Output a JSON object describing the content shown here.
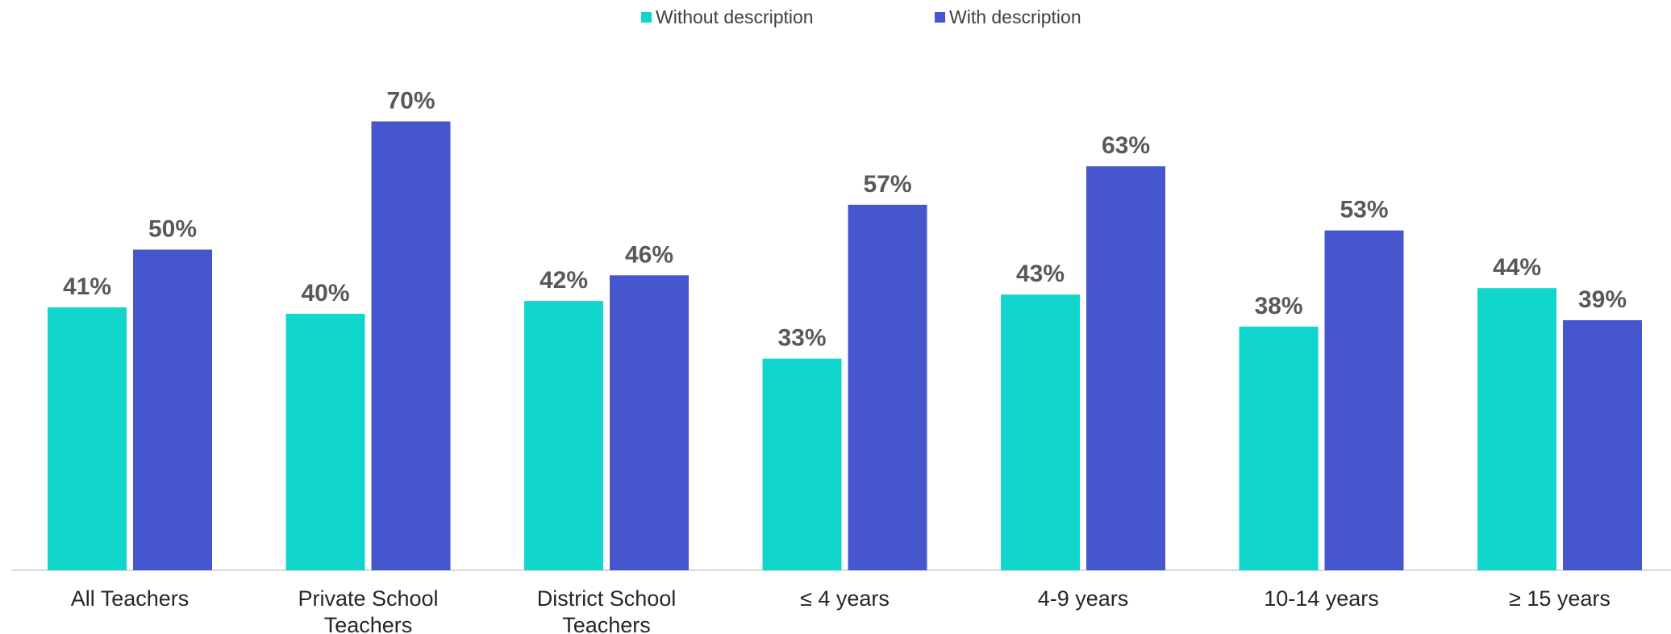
{
  "chart_data": {
    "type": "bar",
    "categories": [
      [
        "All Teachers"
      ],
      [
        "Private School",
        "Teachers"
      ],
      [
        "District School",
        "Teachers"
      ],
      [
        "≤ 4 years"
      ],
      [
        "4-9 years"
      ],
      [
        "10-14 years"
      ],
      [
        "≥ 15 years"
      ]
    ],
    "series": [
      {
        "name": "Without description",
        "color": "#10D6CC",
        "values": [
          41,
          40,
          42,
          33,
          43,
          38,
          44
        ],
        "labels": [
          "41%",
          "40%",
          "42%",
          "33%",
          "43%",
          "38%",
          "44%"
        ]
      },
      {
        "name": "With description",
        "color": "#4657CE",
        "values": [
          50,
          70,
          46,
          57,
          63,
          53,
          39
        ],
        "labels": [
          "50%",
          "70%",
          "46%",
          "57%",
          "63%",
          "53%",
          "39%"
        ]
      }
    ],
    "ylim": [
      0,
      70
    ],
    "grid": false,
    "legend_position": "top-center",
    "axis_color": "#D9D9D9"
  }
}
